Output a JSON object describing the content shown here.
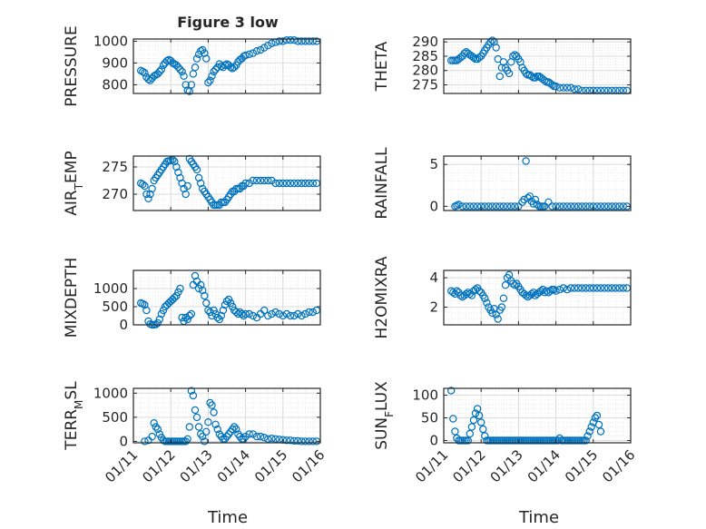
{
  "figure": {
    "title": "Figure 3 low",
    "x_axis_label": "Time",
    "x_tick_labels": [
      "01/11",
      "01/12",
      "01/13",
      "01/14",
      "01/15",
      "01/16"
    ]
  },
  "colors": {
    "marker": "#0072bd",
    "grid": "#d9d9d9",
    "axis": "#262626",
    "background": "#ffffff"
  },
  "chart_data": [
    {
      "type": "scatter",
      "ylabel": "PRESSURE",
      "xlim": [
        0,
        5
      ],
      "ylim": [
        760,
        1010
      ],
      "yticks": [
        800,
        900,
        1000
      ],
      "grid": true,
      "x": [
        0.2,
        0.25,
        0.3,
        0.35,
        0.4,
        0.45,
        0.5,
        0.55,
        0.6,
        0.65,
        0.7,
        0.75,
        0.8,
        0.85,
        0.9,
        0.95,
        1.0,
        1.05,
        1.1,
        1.15,
        1.2,
        1.25,
        1.3,
        1.35,
        1.4,
        1.45,
        1.5,
        1.55,
        1.6,
        1.65,
        1.7,
        1.75,
        1.8,
        1.85,
        1.9,
        1.95,
        2.0,
        2.05,
        2.1,
        2.15,
        2.2,
        2.25,
        2.3,
        2.35,
        2.4,
        2.45,
        2.5,
        2.55,
        2.6,
        2.65,
        2.7,
        2.75,
        2.8,
        2.85,
        2.9,
        2.95,
        3.0,
        3.1,
        3.2,
        3.3,
        3.4,
        3.5,
        3.6,
        3.7,
        3.8,
        3.9,
        4.0,
        4.1,
        4.2,
        4.3,
        4.4,
        4.5,
        4.6,
        4.7,
        4.8,
        4.9
      ],
      "y": [
        865,
        860,
        855,
        835,
        825,
        820,
        830,
        840,
        845,
        850,
        860,
        870,
        890,
        900,
        910,
        915,
        910,
        900,
        895,
        890,
        880,
        870,
        860,
        840,
        800,
        775,
        770,
        800,
        850,
        880,
        920,
        940,
        955,
        960,
        945,
        920,
        810,
        820,
        840,
        860,
        870,
        880,
        895,
        885,
        880,
        890,
        895,
        890,
        880,
        875,
        880,
        890,
        905,
        915,
        920,
        930,
        935,
        940,
        945,
        955,
        960,
        970,
        980,
        990,
        995,
        1000,
        1000,
        1005,
        1005,
        1005,
        1000,
        1000,
        1000,
        1000,
        1000,
        1000
      ]
    },
    {
      "type": "scatter",
      "ylabel": "THETA",
      "xlim": [
        0,
        5
      ],
      "ylim": [
        272,
        291
      ],
      "yticks": [
        275,
        280,
        285,
        290
      ],
      "grid": true,
      "x": [
        0.2,
        0.25,
        0.3,
        0.35,
        0.4,
        0.45,
        0.5,
        0.55,
        0.6,
        0.65,
        0.7,
        0.75,
        0.8,
        0.85,
        0.9,
        0.95,
        1.0,
        1.05,
        1.1,
        1.15,
        1.2,
        1.25,
        1.3,
        1.35,
        1.4,
        1.45,
        1.5,
        1.55,
        1.6,
        1.65,
        1.7,
        1.75,
        1.8,
        1.85,
        1.9,
        1.95,
        2.0,
        2.05,
        2.1,
        2.15,
        2.2,
        2.25,
        2.3,
        2.35,
        2.4,
        2.45,
        2.5,
        2.55,
        2.6,
        2.65,
        2.7,
        2.75,
        2.8,
        2.85,
        2.9,
        2.95,
        3.0,
        3.1,
        3.2,
        3.3,
        3.4,
        3.5,
        3.6,
        3.7,
        3.8,
        3.9,
        4.0,
        4.1,
        4.2,
        4.3,
        4.4,
        4.5,
        4.6,
        4.7,
        4.8,
        4.9
      ],
      "y": [
        283.5,
        283.5,
        283.5,
        283.5,
        284,
        284.5,
        285,
        286,
        286.5,
        286,
        285.5,
        285,
        284.5,
        284,
        284,
        284.5,
        285,
        286,
        287,
        288,
        289,
        290,
        290.5,
        290,
        288,
        284,
        278,
        281,
        283,
        281,
        280,
        279,
        283,
        285,
        285.5,
        285,
        284,
        283,
        281,
        280,
        279,
        278.5,
        278.5,
        278,
        277.5,
        277.5,
        278,
        278,
        277.5,
        277,
        276.5,
        276,
        276,
        275.5,
        275,
        274.5,
        274.5,
        274,
        274,
        274,
        274,
        273.5,
        273.5,
        273,
        273,
        273,
        273,
        273,
        273,
        273,
        273,
        273,
        273,
        273,
        273,
        273
      ]
    },
    {
      "type": "scatter",
      "ylabel": "AIR_TEMP",
      "xlim": [
        0,
        5
      ],
      "ylim": [
        267,
        277
      ],
      "yticks": [
        270,
        275
      ],
      "grid": true,
      "x": [
        0.2,
        0.25,
        0.3,
        0.35,
        0.4,
        0.45,
        0.5,
        0.55,
        0.6,
        0.65,
        0.7,
        0.75,
        0.8,
        0.85,
        0.9,
        0.95,
        1.0,
        1.05,
        1.1,
        1.15,
        1.2,
        1.25,
        1.3,
        1.35,
        1.4,
        1.45,
        1.5,
        1.55,
        1.6,
        1.65,
        1.7,
        1.75,
        1.8,
        1.85,
        1.9,
        1.95,
        2.0,
        2.05,
        2.1,
        2.15,
        2.2,
        2.25,
        2.3,
        2.35,
        2.4,
        2.45,
        2.5,
        2.55,
        2.6,
        2.65,
        2.7,
        2.75,
        2.8,
        2.85,
        2.9,
        2.95,
        3.0,
        3.1,
        3.2,
        3.3,
        3.4,
        3.5,
        3.6,
        3.7,
        3.8,
        3.9,
        4.0,
        4.1,
        4.2,
        4.3,
        4.4,
        4.5,
        4.6,
        4.7,
        4.8,
        4.9
      ],
      "y": [
        272,
        271.8,
        271.5,
        270,
        269.2,
        270,
        271,
        272.5,
        273,
        273.5,
        274,
        274.5,
        275,
        275.5,
        276,
        276.1,
        276.2,
        276.3,
        276,
        275,
        274,
        273,
        272,
        271,
        270,
        271.5,
        276.5,
        276,
        275.5,
        275,
        274.5,
        273,
        272,
        271,
        270.5,
        270,
        269.5,
        269,
        268.5,
        268,
        268,
        268,
        268,
        268.5,
        268.5,
        268.5,
        269,
        269.5,
        270,
        270.5,
        270.5,
        271,
        271,
        271,
        271.5,
        271.5,
        272,
        272,
        272.5,
        272.5,
        272.5,
        272.5,
        272.5,
        272.5,
        272,
        272,
        272,
        272,
        272,
        272,
        272,
        272,
        272,
        272,
        272,
        272
      ]
    },
    {
      "type": "scatter",
      "ylabel": "RAINFALL",
      "xlim": [
        0,
        5
      ],
      "ylim": [
        -0.5,
        6
      ],
      "yticks": [
        0,
        5
      ],
      "grid": true,
      "x": [
        0.3,
        0.35,
        0.4,
        0.5,
        0.6,
        0.7,
        0.8,
        0.9,
        1.0,
        1.1,
        1.2,
        1.3,
        1.4,
        1.5,
        1.6,
        1.7,
        1.8,
        1.9,
        2.0,
        2.1,
        2.15,
        2.2,
        2.25,
        2.3,
        2.35,
        2.4,
        2.45,
        2.5,
        2.55,
        2.6,
        2.65,
        2.7,
        2.8,
        2.9,
        3.0,
        3.1,
        3.2,
        3.3,
        3.4,
        3.5,
        3.6,
        3.7,
        3.8,
        3.9,
        4.0,
        4.1,
        4.2,
        4.3,
        4.4,
        4.5,
        4.6,
        4.7,
        4.8,
        4.9
      ],
      "y": [
        0,
        0.1,
        0.2,
        0,
        0,
        0,
        0,
        0,
        0,
        0,
        0,
        0,
        0,
        0,
        0,
        0,
        0,
        0,
        0,
        0.5,
        0.8,
        5.4,
        1.0,
        1.2,
        0.6,
        0.3,
        0.8,
        0.2,
        0,
        0,
        0,
        0,
        0.5,
        0,
        0,
        0,
        0,
        0,
        0,
        0,
        0,
        0,
        0,
        0,
        0,
        0,
        0,
        0,
        0,
        0,
        0,
        0,
        0,
        0
      ]
    },
    {
      "type": "scatter",
      "ylabel": "MIXDEPTH",
      "xlim": [
        0,
        5
      ],
      "ylim": [
        0,
        1500
      ],
      "yticks": [
        0,
        500,
        1000
      ],
      "grid": true,
      "x": [
        0.2,
        0.25,
        0.3,
        0.35,
        0.4,
        0.45,
        0.5,
        0.55,
        0.6,
        0.65,
        0.7,
        0.75,
        0.8,
        0.85,
        0.9,
        0.95,
        1.0,
        1.05,
        1.1,
        1.15,
        1.2,
        1.25,
        1.3,
        1.35,
        1.4,
        1.45,
        1.5,
        1.55,
        1.6,
        1.65,
        1.7,
        1.75,
        1.8,
        1.85,
        1.9,
        1.95,
        2.0,
        2.05,
        2.1,
        2.15,
        2.2,
        2.25,
        2.3,
        2.35,
        2.4,
        2.45,
        2.5,
        2.55,
        2.6,
        2.65,
        2.7,
        2.75,
        2.8,
        2.85,
        2.9,
        2.95,
        3.0,
        3.1,
        3.2,
        3.3,
        3.4,
        3.5,
        3.6,
        3.7,
        3.8,
        3.9,
        4.0,
        4.1,
        4.2,
        4.3,
        4.4,
        4.5,
        4.6,
        4.7,
        4.8,
        4.9
      ],
      "y": [
        600,
        580,
        550,
        400,
        100,
        20,
        0,
        0,
        10,
        50,
        150,
        300,
        400,
        500,
        550,
        600,
        650,
        700,
        750,
        800,
        900,
        1000,
        200,
        100,
        200,
        150,
        250,
        300,
        1100,
        1350,
        1200,
        1000,
        1100,
        950,
        800,
        600,
        400,
        350,
        250,
        400,
        300,
        200,
        150,
        250,
        400,
        550,
        650,
        700,
        600,
        500,
        400,
        350,
        300,
        350,
        300,
        250,
        300,
        300,
        250,
        200,
        300,
        400,
        250,
        300,
        350,
        300,
        250,
        300,
        250,
        250,
        300,
        250,
        300,
        350,
        350,
        400
      ]
    },
    {
      "type": "scatter",
      "ylabel": "H2OMIXRA",
      "xlim": [
        0,
        5
      ],
      "ylim": [
        0.8,
        4.5
      ],
      "yticks": [
        2,
        4
      ],
      "grid": true,
      "x": [
        0.2,
        0.25,
        0.3,
        0.35,
        0.4,
        0.45,
        0.5,
        0.55,
        0.6,
        0.65,
        0.7,
        0.75,
        0.8,
        0.85,
        0.9,
        0.95,
        1.0,
        1.05,
        1.1,
        1.15,
        1.2,
        1.25,
        1.3,
        1.35,
        1.4,
        1.45,
        1.5,
        1.55,
        1.6,
        1.65,
        1.7,
        1.75,
        1.8,
        1.85,
        1.9,
        1.95,
        2.0,
        2.05,
        2.1,
        2.15,
        2.2,
        2.25,
        2.3,
        2.35,
        2.4,
        2.45,
        2.5,
        2.55,
        2.6,
        2.65,
        2.7,
        2.75,
        2.8,
        2.85,
        2.9,
        2.95,
        3.0,
        3.1,
        3.2,
        3.3,
        3.4,
        3.5,
        3.6,
        3.7,
        3.8,
        3.9,
        4.0,
        4.1,
        4.2,
        4.3,
        4.4,
        4.5,
        4.6,
        4.7,
        4.8,
        4.9
      ],
      "y": [
        3.1,
        3.0,
        2.9,
        3.1,
        3.0,
        2.8,
        2.7,
        2.8,
        2.9,
        3.0,
        2.9,
        2.8,
        3.1,
        3.2,
        3.3,
        3.1,
        3.0,
        2.8,
        2.6,
        2.3,
        2.0,
        1.8,
        1.6,
        1.9,
        1.5,
        1.2,
        1.8,
        2.0,
        2.6,
        3.5,
        4.0,
        4.2,
        3.8,
        3.6,
        3.5,
        3.6,
        3.4,
        3.2,
        3.0,
        2.9,
        2.8,
        2.7,
        2.8,
        2.9,
        3.0,
        2.8,
        2.9,
        3.0,
        3.1,
        3.2,
        3.0,
        3.1,
        3.0,
        3.1,
        3.2,
        3.2,
        3.1,
        3.2,
        3.3,
        3.2,
        3.3,
        3.3,
        3.3,
        3.3,
        3.3,
        3.3,
        3.3,
        3.3,
        3.3,
        3.3,
        3.3,
        3.3,
        3.3,
        3.3,
        3.3,
        3.3
      ]
    },
    {
      "type": "scatter",
      "ylabel": "TERR_MSL",
      "xlim": [
        0,
        5
      ],
      "ylim": [
        -30,
        1100
      ],
      "yticks": [
        0,
        500,
        1000
      ],
      "grid": true,
      "x": [
        0.3,
        0.4,
        0.5,
        0.55,
        0.6,
        0.65,
        0.7,
        0.75,
        0.8,
        0.85,
        0.9,
        0.95,
        1.0,
        1.05,
        1.1,
        1.15,
        1.2,
        1.25,
        1.3,
        1.35,
        1.4,
        1.45,
        1.5,
        1.55,
        1.6,
        1.65,
        1.7,
        1.75,
        1.8,
        1.85,
        1.9,
        1.95,
        2.0,
        2.05,
        2.1,
        2.15,
        2.2,
        2.25,
        2.3,
        2.35,
        2.4,
        2.45,
        2.5,
        2.55,
        2.6,
        2.65,
        2.7,
        2.75,
        2.8,
        2.85,
        2.9,
        2.95,
        3.0,
        3.1,
        3.2,
        3.3,
        3.4,
        3.5,
        3.6,
        3.7,
        3.8,
        3.9,
        4.0,
        4.1,
        4.2,
        4.3,
        4.4,
        4.5,
        4.6,
        4.7,
        4.8,
        4.9
      ],
      "y": [
        0,
        20,
        100,
        380,
        300,
        250,
        150,
        80,
        20,
        0,
        0,
        0,
        0,
        0,
        0,
        0,
        0,
        0,
        0,
        0,
        0,
        50,
        300,
        1050,
        950,
        650,
        500,
        300,
        150,
        100,
        0,
        200,
        400,
        800,
        750,
        600,
        350,
        250,
        150,
        100,
        50,
        50,
        100,
        150,
        200,
        250,
        300,
        250,
        150,
        100,
        50,
        50,
        100,
        150,
        150,
        100,
        100,
        80,
        50,
        60,
        50,
        40,
        30,
        20,
        20,
        10,
        10,
        0,
        0,
        0,
        0,
        0
      ]
    },
    {
      "type": "scatter",
      "ylabel": "SUN_FLUX",
      "xlim": [
        0,
        5
      ],
      "ylim": [
        -5,
        115
      ],
      "yticks": [
        0,
        50,
        100
      ],
      "grid": true,
      "x": [
        0.2,
        0.25,
        0.3,
        0.35,
        0.4,
        0.45,
        0.5,
        0.55,
        0.6,
        0.65,
        0.7,
        0.75,
        0.8,
        0.85,
        0.9,
        0.95,
        1.0,
        1.05,
        1.1,
        1.15,
        1.2,
        1.25,
        1.3,
        1.35,
        1.4,
        1.45,
        1.5,
        1.55,
        1.6,
        1.65,
        1.7,
        1.75,
        1.8,
        1.85,
        1.9,
        1.95,
        2.0,
        2.05,
        2.1,
        2.15,
        2.2,
        2.25,
        2.3,
        2.35,
        2.4,
        2.45,
        2.5,
        2.55,
        2.6,
        2.65,
        2.7,
        2.75,
        2.8,
        2.85,
        2.9,
        2.95,
        3.0,
        3.05,
        3.1,
        3.15,
        3.2,
        3.25,
        3.3,
        3.35,
        3.4,
        3.45,
        3.5,
        3.55,
        3.6,
        3.65,
        3.7,
        3.75,
        3.8,
        3.85,
        3.9,
        3.95,
        4.0,
        4.05,
        4.1,
        4.15,
        4.2
      ],
      "y": [
        110,
        48,
        20,
        5,
        0,
        0,
        0,
        0,
        0,
        0,
        15,
        30,
        45,
        60,
        70,
        55,
        40,
        25,
        10,
        0,
        0,
        0,
        0,
        0,
        0,
        0,
        0,
        0,
        0,
        0,
        0,
        0,
        0,
        0,
        0,
        0,
        0,
        0,
        0,
        0,
        0,
        0,
        0,
        0,
        0,
        0,
        0,
        0,
        0,
        0,
        0,
        0,
        0,
        0,
        0,
        0,
        0,
        0,
        5,
        0,
        0,
        0,
        0,
        0,
        0,
        0,
        0,
        0,
        0,
        0,
        0,
        0,
        0,
        10,
        20,
        30,
        40,
        50,
        55,
        35,
        20
      ]
    }
  ]
}
